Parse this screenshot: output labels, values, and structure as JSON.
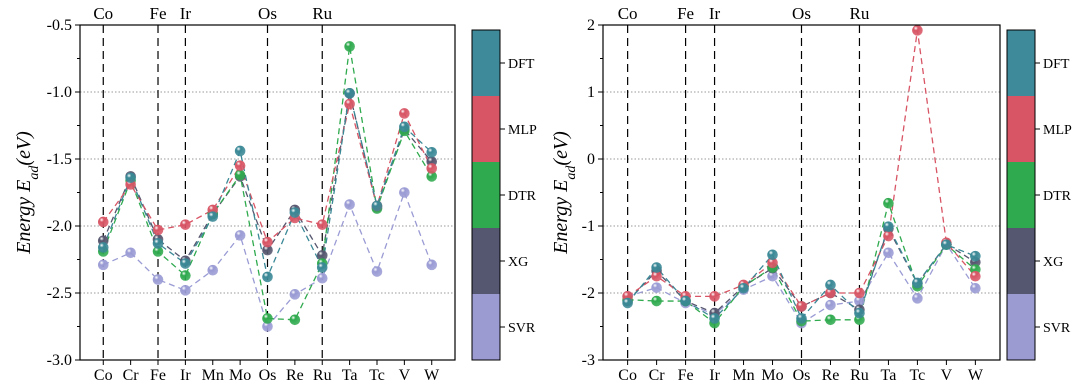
{
  "chart_data": [
    {
      "type": "scatter",
      "ylabel_main": "Energy E",
      "ylabel_sub": "ad",
      "ylabel_unit": "(eV)",
      "categories": [
        "Co",
        "Cr",
        "Fe",
        "Ir",
        "Mn",
        "Mo",
        "Os",
        "Re",
        "Ru",
        "Ta",
        "Tc",
        "V",
        "W"
      ],
      "top_labels": [
        "Co",
        "Fe",
        "Ir",
        "Os",
        "Ru"
      ],
      "divider_after": [
        "Co",
        "Fe",
        "Ir",
        "Os",
        "Ru"
      ],
      "ylim": [
        -3.0,
        -0.5
      ],
      "yticks": [
        "-3.0",
        "-2.5",
        "-2.0",
        "-1.5",
        "-1.0",
        "-0.5"
      ],
      "series": [
        {
          "name": "SVR",
          "color": "#9a9bd4",
          "values": [
            -2.29,
            -2.2,
            -2.4,
            -2.48,
            -2.33,
            -2.07,
            -2.75,
            -2.51,
            -2.39,
            -1.84,
            -2.34,
            -1.75,
            -2.29
          ]
        },
        {
          "name": "XG",
          "color": "#55566e",
          "values": [
            -2.11,
            -1.63,
            -2.1,
            -2.26,
            -1.91,
            -1.63,
            -2.18,
            -1.88,
            -2.22,
            -1.01,
            -1.86,
            -1.28,
            -1.52
          ]
        },
        {
          "name": "DTR",
          "color": "#2faa4e",
          "values": [
            -2.19,
            -1.66,
            -2.19,
            -2.37,
            -1.91,
            -1.62,
            -2.69,
            -2.7,
            -2.28,
            -0.66,
            -1.87,
            -1.29,
            -1.63
          ]
        },
        {
          "name": "MLP",
          "color": "#d85565",
          "values": [
            -1.97,
            -1.69,
            -2.03,
            -1.99,
            -1.88,
            -1.55,
            -2.12,
            -1.94,
            -1.99,
            -1.09,
            -1.85,
            -1.16,
            -1.57
          ]
        },
        {
          "name": "DFT",
          "color": "#3a8896",
          "values": [
            -2.16,
            -1.64,
            -2.13,
            -2.28,
            -1.93,
            -1.44,
            -2.38,
            -1.9,
            -2.31,
            -1.01,
            -1.85,
            -1.26,
            -1.45
          ]
        }
      ]
    },
    {
      "type": "scatter",
      "ylabel_main": "Energy E",
      "ylabel_sub": "ad",
      "ylabel_unit": "(eV)",
      "categories": [
        "Co",
        "Cr",
        "Fe",
        "Ir",
        "Mn",
        "Mo",
        "Os",
        "Re",
        "Ru",
        "Ta",
        "Tc",
        "V",
        "W"
      ],
      "top_labels": [
        "Co",
        "Fe",
        "Ir",
        "Os",
        "Ru"
      ],
      "divider_after": [
        "Co",
        "Fe",
        "Ir",
        "Os",
        "Ru"
      ],
      "ylim": [
        -3,
        2
      ],
      "yticks": [
        "-3",
        "-2",
        "-1",
        "0",
        "1",
        "2"
      ],
      "series": [
        {
          "name": "SVR",
          "color": "#9a9bd4",
          "values": [
            -2.05,
            -1.92,
            -2.15,
            -2.32,
            -1.95,
            -1.75,
            -2.45,
            -2.18,
            -2.12,
            -1.4,
            -2.08,
            -1.27,
            -1.93
          ]
        },
        {
          "name": "XG",
          "color": "#55566e",
          "values": [
            -2.12,
            -1.67,
            -2.12,
            -2.3,
            -1.9,
            -1.63,
            -2.2,
            -2.0,
            -2.25,
            -1.04,
            -1.86,
            -1.27,
            -1.54
          ]
        },
        {
          "name": "DTR",
          "color": "#2faa4e",
          "values": [
            -2.1,
            -2.12,
            -2.12,
            -2.45,
            -1.9,
            -1.62,
            -2.42,
            -2.4,
            -2.4,
            -0.66,
            -1.9,
            -1.28,
            -1.65
          ]
        },
        {
          "name": "MLP",
          "color": "#d85565",
          "values": [
            -2.05,
            -1.75,
            -2.05,
            -2.05,
            -1.88,
            -1.55,
            -2.2,
            -2.0,
            -2.0,
            -1.15,
            1.92,
            -1.25,
            -1.75
          ]
        },
        {
          "name": "DFT",
          "color": "#3a8896",
          "values": [
            -2.15,
            -1.62,
            -2.12,
            -2.38,
            -1.93,
            -1.43,
            -2.38,
            -1.88,
            -2.3,
            -1.01,
            -1.85,
            -1.28,
            -1.45
          ]
        }
      ]
    }
  ],
  "legend": {
    "labels": [
      "DFT",
      "MLP",
      "DTR",
      "XG",
      "SVR"
    ],
    "colors": [
      "#3f8a9a",
      "#d85565",
      "#2faa4e",
      "#555670",
      "#9b9bd2"
    ]
  }
}
